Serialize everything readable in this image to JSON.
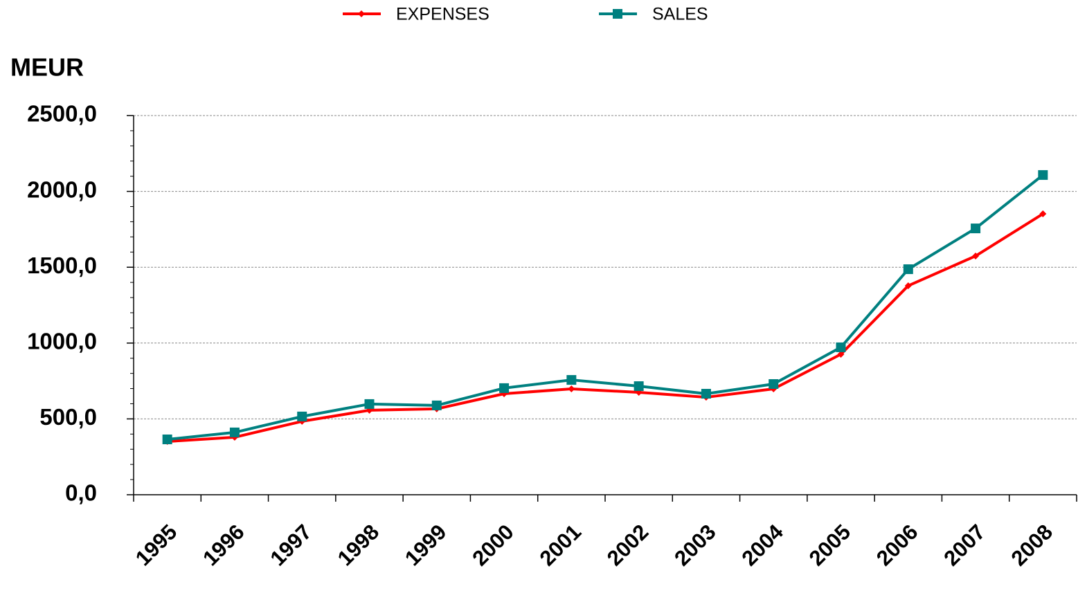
{
  "chart_data": {
    "type": "line",
    "y_label": "MEUR",
    "categories": [
      "1995",
      "1996",
      "1997",
      "1998",
      "1999",
      "2000",
      "2001",
      "2002",
      "2003",
      "2004",
      "2005",
      "2006",
      "2007",
      "2008"
    ],
    "series": [
      {
        "name": "EXPENSES",
        "color": "#ff0000",
        "marker": "diamond",
        "values": [
          351,
          379,
          484,
          557,
          566,
          666,
          698,
          675,
          643,
          698,
          926,
          1378,
          1574,
          1852
        ]
      },
      {
        "name": "SALES",
        "color": "#008080",
        "marker": "square",
        "values": [
          365,
          411,
          516,
          598,
          589,
          703,
          757,
          716,
          666,
          730,
          972,
          1487,
          1756,
          2108
        ]
      }
    ],
    "ylim": [
      0,
      2500
    ],
    "yticks": [
      {
        "value": 0,
        "label": "0,0"
      },
      {
        "value": 500,
        "label": "500,0"
      },
      {
        "value": 1000,
        "label": "1000,0"
      },
      {
        "value": 1500,
        "label": "1500,0"
      },
      {
        "value": 2000,
        "label": "2000,0"
      },
      {
        "value": 2500,
        "label": "2500,0"
      }
    ],
    "grid": true
  }
}
